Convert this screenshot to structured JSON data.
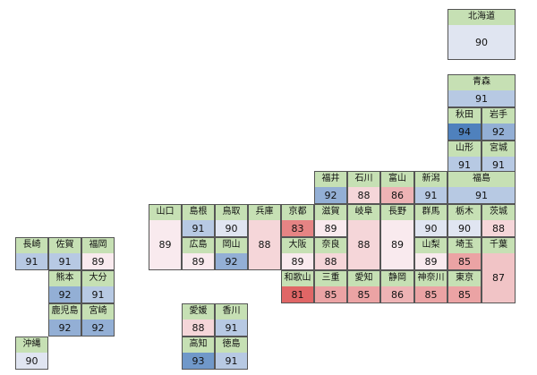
{
  "chart_data": {
    "type": "heatmap",
    "colors": {
      "header": "#c6e0b4",
      "low": "#e06666",
      "mid": "#fbf7fb",
      "high": "#4f81bd"
    },
    "cells": [
      {
        "name": "北海道",
        "value": 90
      },
      {
        "name": "青森",
        "value": 91
      },
      {
        "name": "秋田",
        "value": 94
      },
      {
        "name": "岩手",
        "value": 92
      },
      {
        "name": "山形",
        "value": 91
      },
      {
        "name": "宮城",
        "value": 91
      },
      {
        "name": "福井",
        "value": 92
      },
      {
        "name": "石川",
        "value": 88
      },
      {
        "name": "富山",
        "value": 86
      },
      {
        "name": "新潟",
        "value": 91
      },
      {
        "name": "福島",
        "value": 91
      },
      {
        "name": "山口",
        "value": 89
      },
      {
        "name": "島根",
        "value": 91
      },
      {
        "name": "鳥取",
        "value": 90
      },
      {
        "name": "兵庫",
        "value": 88
      },
      {
        "name": "京都",
        "value": 83
      },
      {
        "name": "滋賀",
        "value": 89
      },
      {
        "name": "岐阜",
        "value": 88
      },
      {
        "name": "長野",
        "value": 89
      },
      {
        "name": "群馬",
        "value": 90
      },
      {
        "name": "栃木",
        "value": 90
      },
      {
        "name": "茨城",
        "value": 88
      },
      {
        "name": "広島",
        "value": 89
      },
      {
        "name": "岡山",
        "value": 92
      },
      {
        "name": "大阪",
        "value": 89
      },
      {
        "name": "奈良",
        "value": 88
      },
      {
        "name": "山梨",
        "value": 89
      },
      {
        "name": "埼玉",
        "value": 85
      },
      {
        "name": "千葉",
        "value": 87
      },
      {
        "name": "和歌山",
        "value": 81
      },
      {
        "name": "三重",
        "value": 85
      },
      {
        "name": "愛知",
        "value": 85
      },
      {
        "name": "静岡",
        "value": 86
      },
      {
        "name": "神奈川",
        "value": 85
      },
      {
        "name": "東京",
        "value": 85
      },
      {
        "name": "長崎",
        "value": 91
      },
      {
        "name": "佐賀",
        "value": 91
      },
      {
        "name": "福岡",
        "value": 89
      },
      {
        "name": "熊本",
        "value": 92
      },
      {
        "name": "大分",
        "value": 91
      },
      {
        "name": "鹿児島",
        "value": 92
      },
      {
        "name": "宮崎",
        "value": 92
      },
      {
        "name": "愛媛",
        "value": 88
      },
      {
        "name": "香川",
        "value": 91
      },
      {
        "name": "高知",
        "value": 93
      },
      {
        "name": "徳島",
        "value": 91
      },
      {
        "name": "沖縄",
        "value": 90
      }
    ]
  }
}
